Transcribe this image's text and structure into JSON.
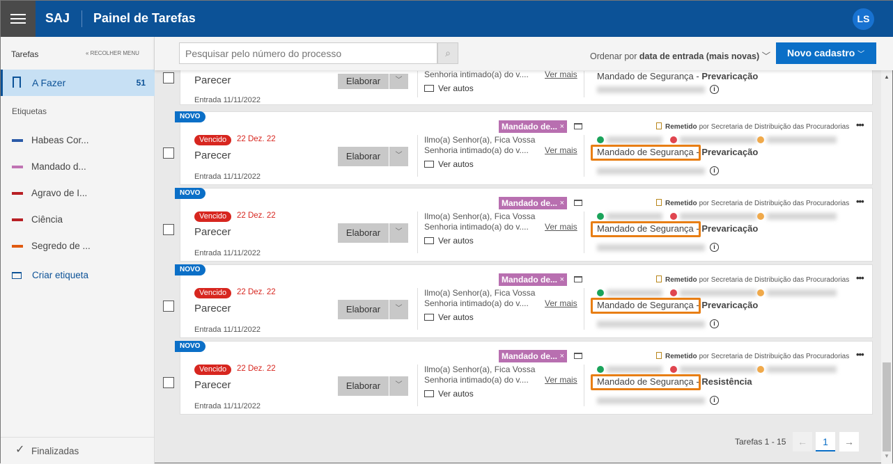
{
  "header": {
    "brand": "SAJ",
    "title": "Painel de Tarefas",
    "avatar": "LS",
    "color": "#0c5297"
  },
  "sidebar": {
    "heading": "Tarefas",
    "collapse": "« RECOLHER MENU",
    "active": {
      "label": "A Fazer",
      "count": "51",
      "icon": "bookmark-icon"
    },
    "labels_heading": "Etiquetas",
    "tags": [
      {
        "label": "Habeas Cor...",
        "color": "#2b5aa8"
      },
      {
        "label": "Mandado d...",
        "color": "#c073b3"
      },
      {
        "label": "Agravo de I...",
        "color": "#b81f24"
      },
      {
        "label": "Ciência",
        "color": "#b81f24"
      },
      {
        "label": "Segredo de ...",
        "color": "#e05a10"
      }
    ],
    "create": "Criar etiqueta",
    "finished": "Finalizadas"
  },
  "toolbar": {
    "search_placeholder": "Pesquisar pelo número do processo",
    "order_prefix": "Ordenar por",
    "order_value": "data de entrada (mais novas)",
    "new_button": "Novo cadastro"
  },
  "partial_card": {
    "title": "Parecer",
    "entry": "Entrada 11/11/2022",
    "action": "Elaborar",
    "msg": "Senhoria intimado(a) do v....",
    "more": "Ver mais",
    "autos": "Ver autos",
    "classe": "Mandado de Segurança - ",
    "assunto": "Prevaricação"
  },
  "cards": [
    {
      "badge": "NOVO",
      "status": "Vencido",
      "due": "22 Dez. 22",
      "title": "Parecer",
      "entry": "Entrada 11/11/2022",
      "action": "Elaborar",
      "msg1": "Ilmo(a) Senhor(a), Fica Vossa",
      "msg2": "Senhoria intimado(a) do v....",
      "more": "Ver mais",
      "autos": "Ver autos",
      "tag": "Mandado de...",
      "remetido": "Remetido",
      "remetido_by": "por Secretaria de Distribuição das Procuradorias",
      "classe": "Mandado de Segurança",
      "assunto": "Prevaricação"
    },
    {
      "badge": "NOVO",
      "status": "Vencido",
      "due": "22 Dez. 22",
      "title": "Parecer",
      "entry": "Entrada 11/11/2022",
      "action": "Elaborar",
      "msg1": "Ilmo(a) Senhor(a), Fica Vossa",
      "msg2": "Senhoria intimado(a) do v....",
      "more": "Ver mais",
      "autos": "Ver autos",
      "tag": "Mandado de...",
      "remetido": "Remetido",
      "remetido_by": "por Secretaria de Distribuição das Procuradorias",
      "classe": "Mandado de Segurança",
      "assunto": "Prevaricação"
    },
    {
      "badge": "NOVO",
      "status": "Vencido",
      "due": "22 Dez. 22",
      "title": "Parecer",
      "entry": "Entrada 11/11/2022",
      "action": "Elaborar",
      "msg1": "Ilmo(a) Senhor(a), Fica Vossa",
      "msg2": "Senhoria intimado(a) do v....",
      "more": "Ver mais",
      "autos": "Ver autos",
      "tag": "Mandado de...",
      "remetido": "Remetido",
      "remetido_by": "por Secretaria de Distribuição das Procuradorias",
      "classe": "Mandado de Segurança",
      "assunto": "Prevaricação"
    },
    {
      "badge": "NOVO",
      "status": "Vencido",
      "due": "22 Dez. 22",
      "title": "Parecer",
      "entry": "Entrada 11/11/2022",
      "action": "Elaborar",
      "msg1": "Ilmo(a) Senhor(a), Fica Vossa",
      "msg2": "Senhoria intimado(a) do v....",
      "more": "Ver mais",
      "autos": "Ver autos",
      "tag": "Mandado de...",
      "remetido": "Remetido",
      "remetido_by": "por Secretaria de Distribuição das Procuradorias",
      "classe": "Mandado de Segurança",
      "assunto": "Resistência"
    }
  ],
  "pagination": {
    "summary": "Tarefas 1 - 15",
    "current": "1",
    "prev": "←",
    "next": "→"
  }
}
